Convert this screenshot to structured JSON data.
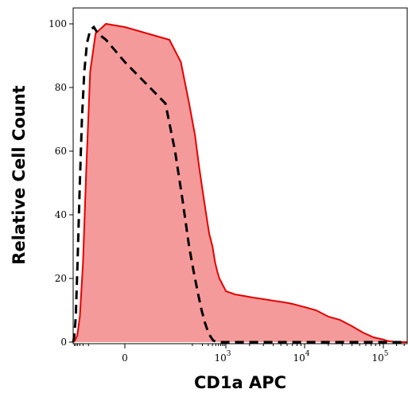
{
  "chart_data": {
    "type": "area",
    "title": "",
    "xlabel": "CD1a APC",
    "ylabel": "Relative Cell Count",
    "ylim": [
      0,
      105
    ],
    "xlim": [
      -700,
      350000
    ],
    "x_scale": "biexponential",
    "grid": false,
    "legend": "none",
    "y_ticks": [
      0,
      20,
      40,
      60,
      80,
      100
    ],
    "x_ticks": [
      {
        "value": 0,
        "base": "0",
        "exp": ""
      },
      {
        "value": 1000,
        "base": "10",
        "exp": "3"
      },
      {
        "value": 10000,
        "base": "10",
        "exp": "4"
      },
      {
        "value": 100000,
        "base": "10",
        "exp": "5"
      }
    ],
    "series": [
      {
        "style": "filled",
        "color": "#e60000",
        "fill": "#f59a9a",
        "x": [
          -700,
          -560,
          -420,
          -300,
          -200,
          -130,
          -80,
          -40,
          -10,
          0,
          20,
          45,
          80,
          120,
          160,
          200,
          260,
          320,
          400,
          480,
          560,
          640,
          720,
          800,
          900,
          1000,
          1300,
          1700,
          2200,
          3000,
          4000,
          5500,
          7000,
          10000,
          14000,
          20000,
          28000,
          40000,
          55000,
          75000,
          100000,
          130000,
          200000,
          350000
        ],
        "y": [
          0,
          0.5,
          2,
          8,
          25,
          55,
          85,
          97,
          100,
          99,
          95,
          88,
          75,
          65,
          55,
          48,
          40,
          34,
          30,
          25,
          22,
          20,
          19,
          18,
          17,
          16,
          15,
          14.5,
          14,
          13.5,
          13,
          12.5,
          12,
          11,
          10,
          8,
          7,
          5,
          3,
          1.5,
          0.8,
          0.3,
          0,
          0
        ]
      },
      {
        "style": "dashed",
        "color": "#000000",
        "x": [
          -700,
          -600,
          -500,
          -400,
          -300,
          -230,
          -170,
          -120,
          -80,
          -50,
          -30,
          -10,
          0,
          15,
          30,
          50,
          80,
          110,
          150,
          190,
          240,
          300,
          360,
          420,
          500,
          600,
          800,
          1000,
          2000,
          10000,
          100000,
          350000
        ],
        "y": [
          0,
          2,
          8,
          25,
          50,
          70,
          85,
          94,
          98,
          99,
          97,
          95,
          88,
          75,
          60,
          45,
          30,
          22,
          15,
          10,
          6,
          3,
          1.5,
          0.5,
          0.2,
          0,
          0,
          0,
          0,
          0,
          0,
          0
        ]
      }
    ]
  }
}
